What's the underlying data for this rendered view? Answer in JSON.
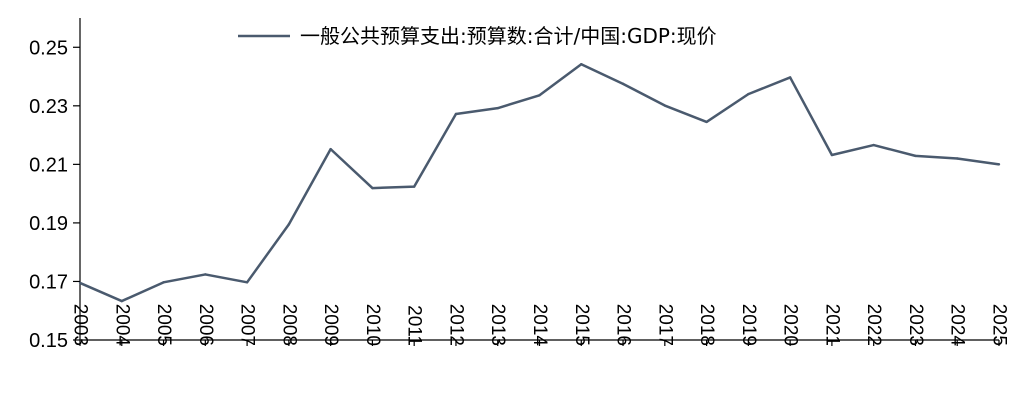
{
  "chart_data": {
    "type": "line",
    "x": [
      "2003",
      "2004",
      "2005",
      "2006",
      "2007",
      "2008",
      "2009",
      "2010",
      "2011",
      "2012",
      "2013",
      "2014",
      "2015",
      "2016",
      "2017",
      "2018",
      "2019",
      "2020",
      "2021",
      "2022",
      "2023",
      "2024",
      "2025"
    ],
    "series": [
      {
        "name": "一般公共预算支出:预算数:合计/中国:GDP:现价",
        "values": [
          0.1695,
          0.1633,
          0.1697,
          0.1724,
          0.1697,
          0.1895,
          0.2152,
          0.2019,
          0.2024,
          0.2272,
          0.2292,
          0.2336,
          0.2442,
          0.2375,
          0.2301,
          0.2245,
          0.234,
          0.2397,
          0.2132,
          0.2166,
          0.2129,
          0.212,
          0.21
        ]
      }
    ],
    "ylim": [
      0.15,
      0.26
    ],
    "yticks": [
      "0.15",
      "0.17",
      "0.19",
      "0.21",
      "0.23",
      "0.25"
    ],
    "grid": false,
    "legend_position": "top-center",
    "colors": {
      "line": "#4a5a6e",
      "axis": "#000000"
    }
  }
}
